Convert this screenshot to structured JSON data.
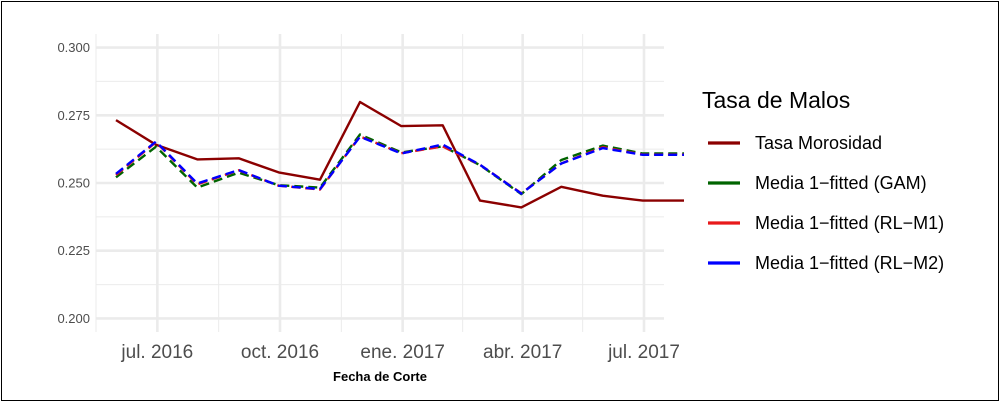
{
  "chart_data": {
    "type": "line",
    "title": "",
    "xlabel": "Fecha de Corte",
    "ylabel": "",
    "ylim": [
      0.195,
      0.305
    ],
    "y_ticks": [
      0.2,
      0.225,
      0.25,
      0.275,
      0.3
    ],
    "y_tick_labels": [
      "0.200",
      "0.225",
      "0.250",
      "0.275",
      "0.300"
    ],
    "x_range": [
      "2016-05-16",
      "2017-07-16"
    ],
    "x_ticks": [
      "2016-07-01",
      "2016-10-01",
      "2017-01-01",
      "2017-04-01",
      "2017-07-01"
    ],
    "x_tick_labels": [
      "jul. 2016",
      "oct. 2016",
      "ene. 2017",
      "abr. 2017",
      "jul. 2017"
    ],
    "x_minor_ticks": [
      "2016-05-16",
      "2016-08-16",
      "2016-11-16",
      "2017-02-15",
      "2017-05-16"
    ],
    "x": [
      "2016-05-31",
      "2016-06-30",
      "2016-07-31",
      "2016-08-31",
      "2016-09-30",
      "2016-10-31",
      "2016-11-30",
      "2016-12-31",
      "2017-01-31",
      "2017-02-28",
      "2017-03-31",
      "2017-04-30",
      "2017-05-31",
      "2017-06-30",
      "2017-07-31"
    ],
    "grid": true,
    "legend": {
      "title": "Tasa de Malos",
      "position": "right"
    },
    "series": [
      {
        "name": "Tasa Morosidad",
        "color": "#8b0000",
        "dash": "solid",
        "values": [
          0.2732,
          0.2641,
          0.2587,
          0.2591,
          0.2539,
          0.2512,
          0.2799,
          0.271,
          0.2713,
          0.2435,
          0.241,
          0.2486,
          0.2453,
          0.2435,
          0.2435
        ]
      },
      {
        "name": "Media 1−fitted (GAM)",
        "color": "#006400",
        "dash": "dashed",
        "values": [
          0.2521,
          0.2634,
          0.2483,
          0.2538,
          0.2492,
          0.2483,
          0.2679,
          0.2613,
          0.2635,
          0.2566,
          0.2459,
          0.2585,
          0.2638,
          0.2609,
          0.2609
        ]
      },
      {
        "name": "Media 1−fitted (RL−M1)",
        "color": "#e8191b",
        "dash": "dashed",
        "values": [
          0.253,
          0.2651,
          0.2495,
          0.2547,
          0.249,
          0.2476,
          0.2672,
          0.261,
          0.2635,
          0.2567,
          0.2462,
          0.2572,
          0.2632,
          0.2605,
          0.2605
        ]
      },
      {
        "name": "Media 1−fitted (RL−M2)",
        "color": "#0000ff",
        "dash": "dashed",
        "values": [
          0.2534,
          0.2653,
          0.2498,
          0.2548,
          0.249,
          0.2478,
          0.2671,
          0.2609,
          0.2642,
          0.2567,
          0.2461,
          0.2572,
          0.2629,
          0.2604,
          0.2604
        ]
      }
    ]
  }
}
